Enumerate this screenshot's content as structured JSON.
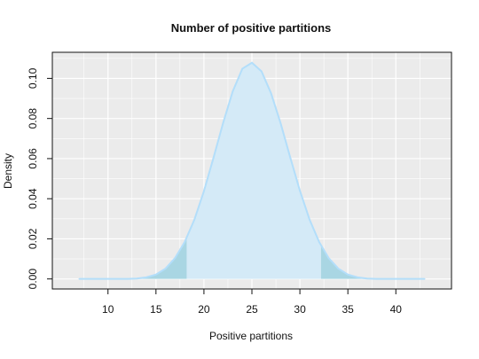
{
  "chart_data": {
    "type": "area",
    "title": "Number of positive partitions",
    "xlabel": "Positive partitions",
    "ylabel": "Density",
    "xlim": [
      4.2,
      45.8
    ],
    "ylim": [
      -0.005,
      0.113
    ],
    "xticks": [
      "10",
      "15",
      "20",
      "25",
      "30",
      "35",
      "40"
    ],
    "xtick_values": [
      10,
      15,
      20,
      25,
      30,
      35,
      40
    ],
    "yticks": [
      "0.00",
      "0.02",
      "0.04",
      "0.06",
      "0.08",
      "0.10"
    ],
    "ytick_values": [
      0,
      0.02,
      0.04,
      0.06,
      0.08,
      0.1
    ],
    "grid": true,
    "shaded_tails": {
      "lower_upto": 18.2,
      "upper_from": 32.2
    },
    "x": [
      7,
      8,
      9,
      10,
      11,
      12,
      13,
      14,
      15,
      16,
      17,
      18,
      19,
      20,
      21,
      22,
      23,
      24,
      25,
      26,
      27,
      28,
      29,
      30,
      31,
      32,
      33,
      34,
      35,
      36,
      37,
      38,
      39,
      40,
      41,
      42,
      43
    ],
    "y": [
      0.0,
      0.0,
      0.0,
      0.0,
      0.0,
      0.0,
      0.0002,
      0.0008,
      0.0022,
      0.0052,
      0.0105,
      0.0185,
      0.0295,
      0.0438,
      0.0605,
      0.0778,
      0.0935,
      0.1048,
      0.1078,
      0.1035,
      0.0925,
      0.0775,
      0.0605,
      0.044,
      0.0297,
      0.0185,
      0.0104,
      0.0052,
      0.0022,
      0.0008,
      0.0002,
      0.0,
      0.0,
      0.0,
      0.0,
      0.0,
      0.0
    ]
  },
  "colors": {
    "panel_bg": "#ebebeb",
    "grid": "#ffffff",
    "center_fill": "#d4eaf7",
    "tail_fill": "#a9d6e3",
    "line": "#b3defa"
  }
}
